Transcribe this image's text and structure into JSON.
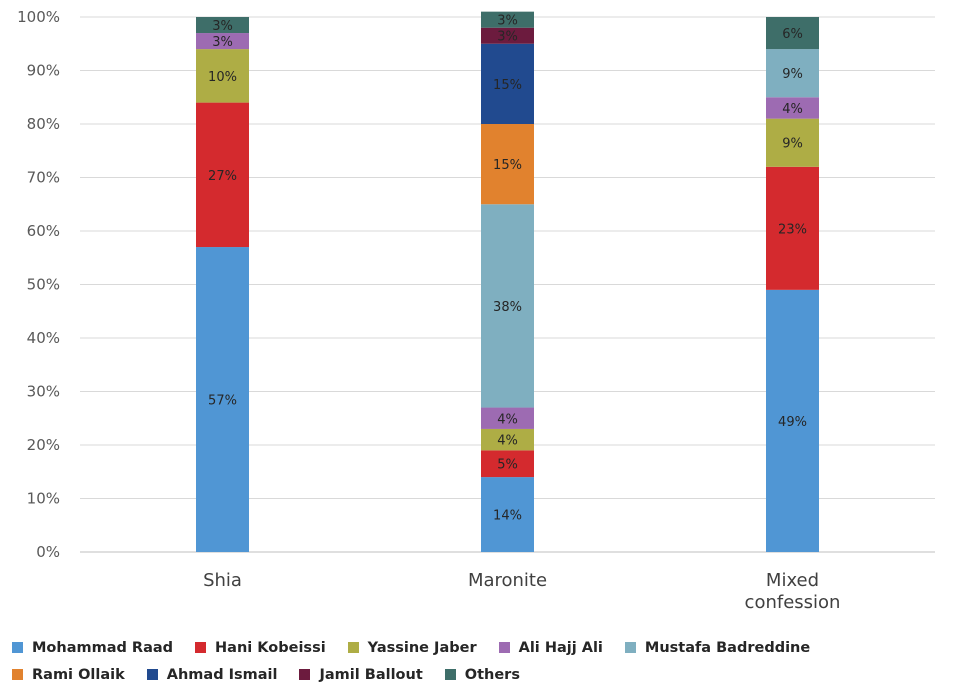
{
  "chart_data": {
    "type": "bar",
    "stacked": true,
    "percent": true,
    "categories": [
      "Shia",
      "Maronite",
      "Mixed confession"
    ],
    "category_lines": [
      [
        "Shia"
      ],
      [
        "Maronite"
      ],
      [
        "Mixed",
        "confession"
      ]
    ],
    "ylim": [
      0,
      100
    ],
    "yticks": [
      "0%",
      "10%",
      "20%",
      "30%",
      "40%",
      "50%",
      "60%",
      "70%",
      "80%",
      "90%",
      "100%"
    ],
    "grid": true,
    "legend_position": "bottom",
    "series": [
      {
        "name": "Mohammad Raad",
        "color": "#5096D4",
        "values": [
          57,
          14,
          49
        ],
        "labels": [
          "57%",
          "14%",
          "49%"
        ]
      },
      {
        "name": "Hani Kobeissi",
        "color": "#D42A2E",
        "values": [
          27,
          5,
          23
        ],
        "labels": [
          "27%",
          "5%",
          "23%"
        ]
      },
      {
        "name": "Yassine Jaber",
        "color": "#AEAD45",
        "values": [
          10,
          4,
          9
        ],
        "labels": [
          "10%",
          "4%",
          "9%"
        ]
      },
      {
        "name": "Ali Hajj Ali",
        "color": "#9D6BB2",
        "values": [
          3,
          4,
          4
        ],
        "labels": [
          "3%",
          "4%",
          "4%"
        ]
      },
      {
        "name": "Mustafa Badreddine",
        "color": "#7FAFC0",
        "values": [
          0,
          38,
          9
        ],
        "labels": [
          "",
          "38%",
          "9%"
        ]
      },
      {
        "name": "Rami Ollaik",
        "color": "#E1822E",
        "values": [
          0,
          15,
          0
        ],
        "labels": [
          "",
          "15%",
          ""
        ]
      },
      {
        "name": "Ahmad Ismail",
        "color": "#214A8F",
        "values": [
          0,
          15,
          0
        ],
        "labels": [
          "",
          "15%",
          ""
        ]
      },
      {
        "name": "Jamil Ballout",
        "color": "#6C1B3E",
        "values": [
          0,
          3,
          0
        ],
        "labels": [
          "",
          "3%",
          ""
        ]
      },
      {
        "name": "Others",
        "color": "#3E6E69",
        "values": [
          3,
          3,
          6
        ],
        "labels": [
          "3%",
          "3%",
          "6%"
        ]
      }
    ]
  },
  "legend": {
    "rows": [
      [
        "Mohammad Raad",
        "Hani Kobeissi",
        "Yassine Jaber",
        "Ali Hajj Ali",
        "Mustafa Badreddine"
      ],
      [
        "Rami Ollaik",
        "Ahmad Ismail",
        "Jamil Ballout",
        "Others"
      ]
    ]
  }
}
